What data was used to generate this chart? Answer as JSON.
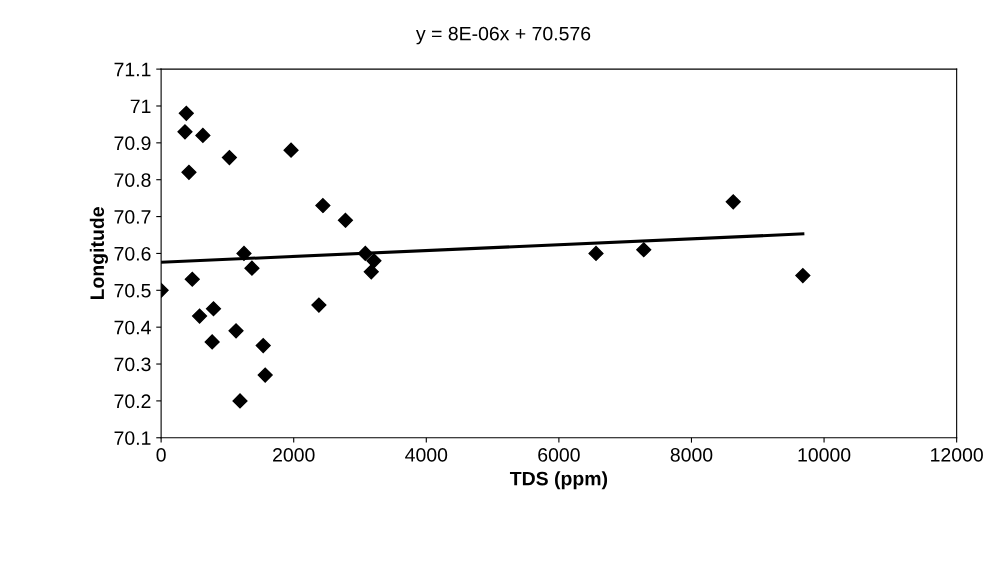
{
  "chart_data": {
    "type": "scatter",
    "xlabel": "TDS (ppm)",
    "ylabel": "Longitude",
    "annotations": [
      "y = 8E-06x + 70.576"
    ],
    "xlim": [
      0,
      12000
    ],
    "xticks": [
      0,
      2000,
      4000,
      6000,
      8000,
      10000,
      12000
    ],
    "ylim": [
      70.1,
      71.1
    ],
    "yticks": [
      70.1,
      70.2,
      70.3,
      70.4,
      70.5,
      70.6,
      70.7,
      70.8,
      70.9,
      {
        "value": 71,
        "label": "71"
      },
      71.1
    ],
    "marker": "diamond",
    "grid": false,
    "legend": false,
    "series": [
      {
        "color": "#000000",
        "x": [
          0,
          380,
          360,
          630,
          420,
          1030,
          470,
          580,
          790,
          770,
          1130,
          1190,
          1250,
          1370,
          1540,
          1570,
          1960,
          2440,
          2780,
          2380,
          3080,
          3210,
          3170,
          6560,
          7280,
          8630,
          9680
        ],
        "values": [
          70.5,
          70.98,
          70.93,
          70.92,
          70.82,
          70.86,
          70.53,
          70.43,
          70.45,
          70.36,
          70.39,
          70.2,
          70.6,
          70.56,
          70.35,
          70.27,
          70.88,
          70.73,
          70.69,
          70.46,
          70.6,
          70.58,
          70.55,
          70.6,
          70.61,
          70.74,
          70.54
        ]
      },
      {
        "type": "line",
        "marker": "none",
        "color": "#000000",
        "x": [
          0,
          9680
        ],
        "values": [
          70.576,
          70.653
        ]
      }
    ]
  }
}
